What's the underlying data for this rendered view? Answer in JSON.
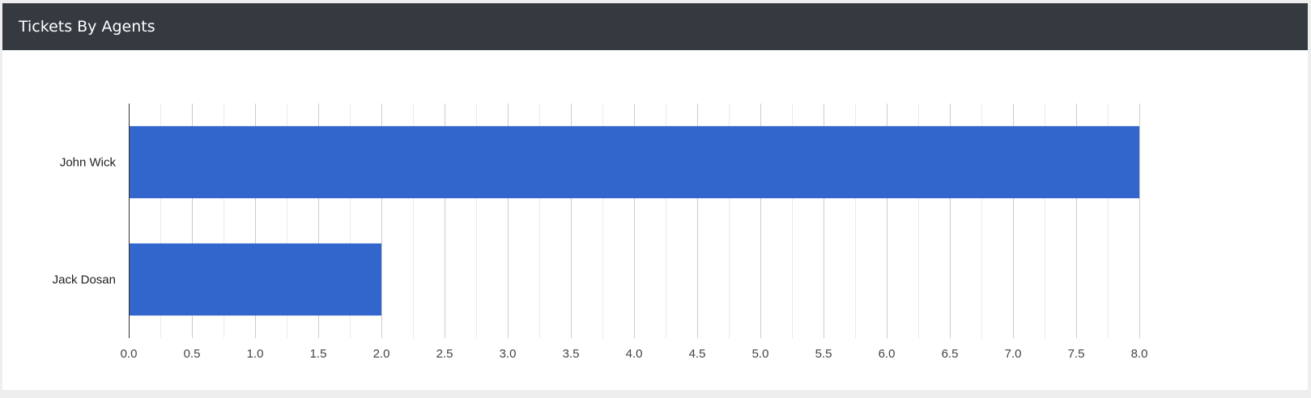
{
  "card": {
    "title": "Tickets By Agents"
  },
  "colors": {
    "header_bg": "#343a40",
    "bar": "#3366cc",
    "gridline_major": "#cccccc",
    "gridline_minor": "#ebebeb",
    "axis_line": "#333333",
    "tick_text": "#444444",
    "category_text": "#222222"
  },
  "chart_data": {
    "type": "bar",
    "orientation": "horizontal",
    "title": "",
    "xlabel": "",
    "ylabel": "",
    "categories": [
      "John Wick",
      "Jack Dosan"
    ],
    "values": [
      8,
      2
    ],
    "xlim": [
      0,
      8
    ],
    "x_ticks": [
      "0.0",
      "0.5",
      "1.0",
      "1.5",
      "2.0",
      "2.5",
      "3.0",
      "3.5",
      "4.0",
      "4.5",
      "5.0",
      "5.5",
      "6.0",
      "6.5",
      "7.0",
      "7.5",
      "8.0"
    ],
    "grid": true,
    "legend": "none"
  }
}
